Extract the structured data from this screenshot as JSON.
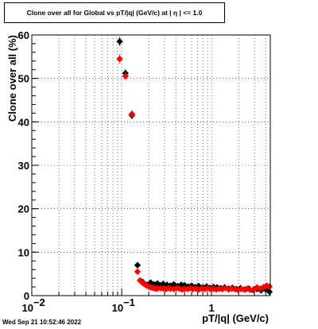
{
  "chart_data": {
    "type": "scatter",
    "title": "Clone  over all for Global vs pT/|q| (GeV/c) at |  η  | <= 1.0",
    "xlabel": "pT/|q| (GeV/c)",
    "ylabel": "Clone  over all (%)",
    "xscale": "log",
    "xlim": [
      0.01,
      4.5
    ],
    "ylim": [
      0,
      60
    ],
    "grid": true,
    "x_tick_labels": [
      {
        "value": 0.01,
        "label": "10",
        "exp": "−2"
      },
      {
        "value": 0.1,
        "label": "10",
        "exp": "−1"
      },
      {
        "value": 1,
        "label": "1",
        "exp": ""
      }
    ],
    "y_ticks": [
      0,
      10,
      20,
      30,
      40,
      50,
      60
    ],
    "series": [
      {
        "color": "#000000",
        "x": [
          0.095,
          0.11,
          0.13,
          0.15,
          0.17,
          0.19,
          0.21,
          0.23,
          0.25,
          0.27,
          0.29,
          0.32,
          0.35,
          0.38,
          0.42,
          0.46,
          0.5,
          0.55,
          0.6,
          0.66,
          0.72,
          0.8,
          0.88,
          0.96,
          1.05,
          1.15,
          1.27,
          1.4,
          1.55,
          1.7,
          1.9,
          2.1,
          2.35,
          2.6,
          2.9,
          3.2,
          3.55,
          4.0,
          4.4
        ],
        "y": [
          58.5,
          51.2,
          41.5,
          7.0,
          3.2,
          2.5,
          3.0,
          2.6,
          2.8,
          2.4,
          2.7,
          2.5,
          2.3,
          2.6,
          2.2,
          2.5,
          2.4,
          2.1,
          2.3,
          2.0,
          2.2,
          1.9,
          2.1,
          1.8,
          2.0,
          1.9,
          1.7,
          1.9,
          1.6,
          1.8,
          1.5,
          1.7,
          1.4,
          1.6,
          1.3,
          1.5,
          1.2,
          1.4,
          0.9
        ],
        "err": [
          1.0,
          0.9,
          0.9,
          0.4,
          0.3,
          0.3,
          0.3,
          0.3,
          0.3,
          0.3,
          0.3,
          0.3,
          0.3,
          0.3,
          0.3,
          0.3,
          0.3,
          0.3,
          0.3,
          0.3,
          0.3,
          0.3,
          0.3,
          0.3,
          0.3,
          0.3,
          0.3,
          0.3,
          0.3,
          0.3,
          0.3,
          0.3,
          0.3,
          0.3,
          0.3,
          0.3,
          0.3,
          0.3,
          0.3
        ]
      },
      {
        "color": "#ff0000",
        "x": [
          0.095,
          0.11,
          0.13,
          0.15,
          0.16,
          0.17,
          0.18,
          0.19,
          0.2,
          0.21,
          0.22,
          0.23,
          0.24,
          0.25,
          0.27,
          0.29,
          0.31,
          0.33,
          0.35,
          0.38,
          0.41,
          0.44,
          0.47,
          0.5,
          0.54,
          0.58,
          0.62,
          0.67,
          0.72,
          0.78,
          0.84,
          0.9,
          0.97,
          1.05,
          1.13,
          1.22,
          1.32,
          1.43,
          1.55,
          1.68,
          1.82,
          1.97,
          2.13,
          2.3,
          2.5,
          2.7,
          2.95,
          3.2,
          3.5,
          3.8,
          4.1,
          4.4
        ],
        "y": [
          54.5,
          50.5,
          41.8,
          5.5,
          3.5,
          3.0,
          2.6,
          2.3,
          2.1,
          1.9,
          1.8,
          1.7,
          1.6,
          1.6,
          1.7,
          1.6,
          1.5,
          1.7,
          1.6,
          1.5,
          1.7,
          1.6,
          1.4,
          1.6,
          1.5,
          1.7,
          1.5,
          1.6,
          1.4,
          1.6,
          1.5,
          1.7,
          1.5,
          1.6,
          1.4,
          1.6,
          1.5,
          1.7,
          1.4,
          1.6,
          1.5,
          1.3,
          1.5,
          1.4,
          1.6,
          1.3,
          1.5,
          1.9,
          1.6,
          2.0,
          2.3,
          2.1
        ],
        "err": [
          1.0,
          0.9,
          0.9,
          0.4,
          0.3,
          0.3,
          0.3,
          0.3,
          0.3,
          0.3,
          0.3,
          0.3,
          0.3,
          0.3,
          0.3,
          0.3,
          0.3,
          0.3,
          0.3,
          0.3,
          0.3,
          0.3,
          0.3,
          0.3,
          0.3,
          0.3,
          0.3,
          0.3,
          0.3,
          0.3,
          0.3,
          0.3,
          0.3,
          0.3,
          0.3,
          0.3,
          0.3,
          0.3,
          0.3,
          0.3,
          0.3,
          0.3,
          0.3,
          0.3,
          0.3,
          0.3,
          0.3,
          0.3,
          0.3,
          0.3,
          0.3,
          0.3
        ]
      }
    ]
  },
  "footer": {
    "timestamp": "Wed Sep 21 10:52:46 2022"
  }
}
